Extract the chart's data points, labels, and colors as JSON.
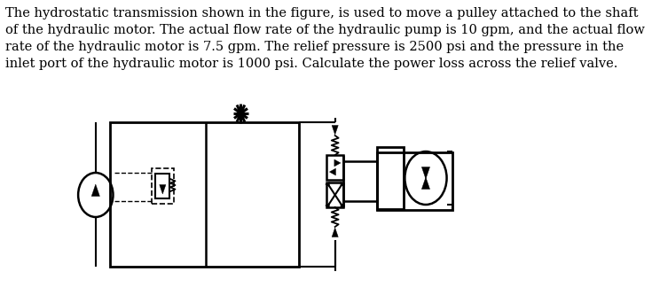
{
  "text": "The hydrostatic transmission shown in the figure, is used to move a pulley attached to the shaft\nof the hydraulic motor. The actual flow rate of the hydraulic pump is 10 gpm, and the actual flow\nrate of the hydraulic motor is 7.5 gpm. The relief pressure is 2500 psi and the pressure in the\ninlet port of the hydraulic motor is 1000 psi. Calculate the power loss across the relief valve.",
  "bg_color": "#ffffff",
  "line_color": "#000000",
  "text_color": "#000000",
  "text_fontsize": 10.5,
  "fig_width": 7.35,
  "fig_height": 3.33,
  "dpi": 100
}
